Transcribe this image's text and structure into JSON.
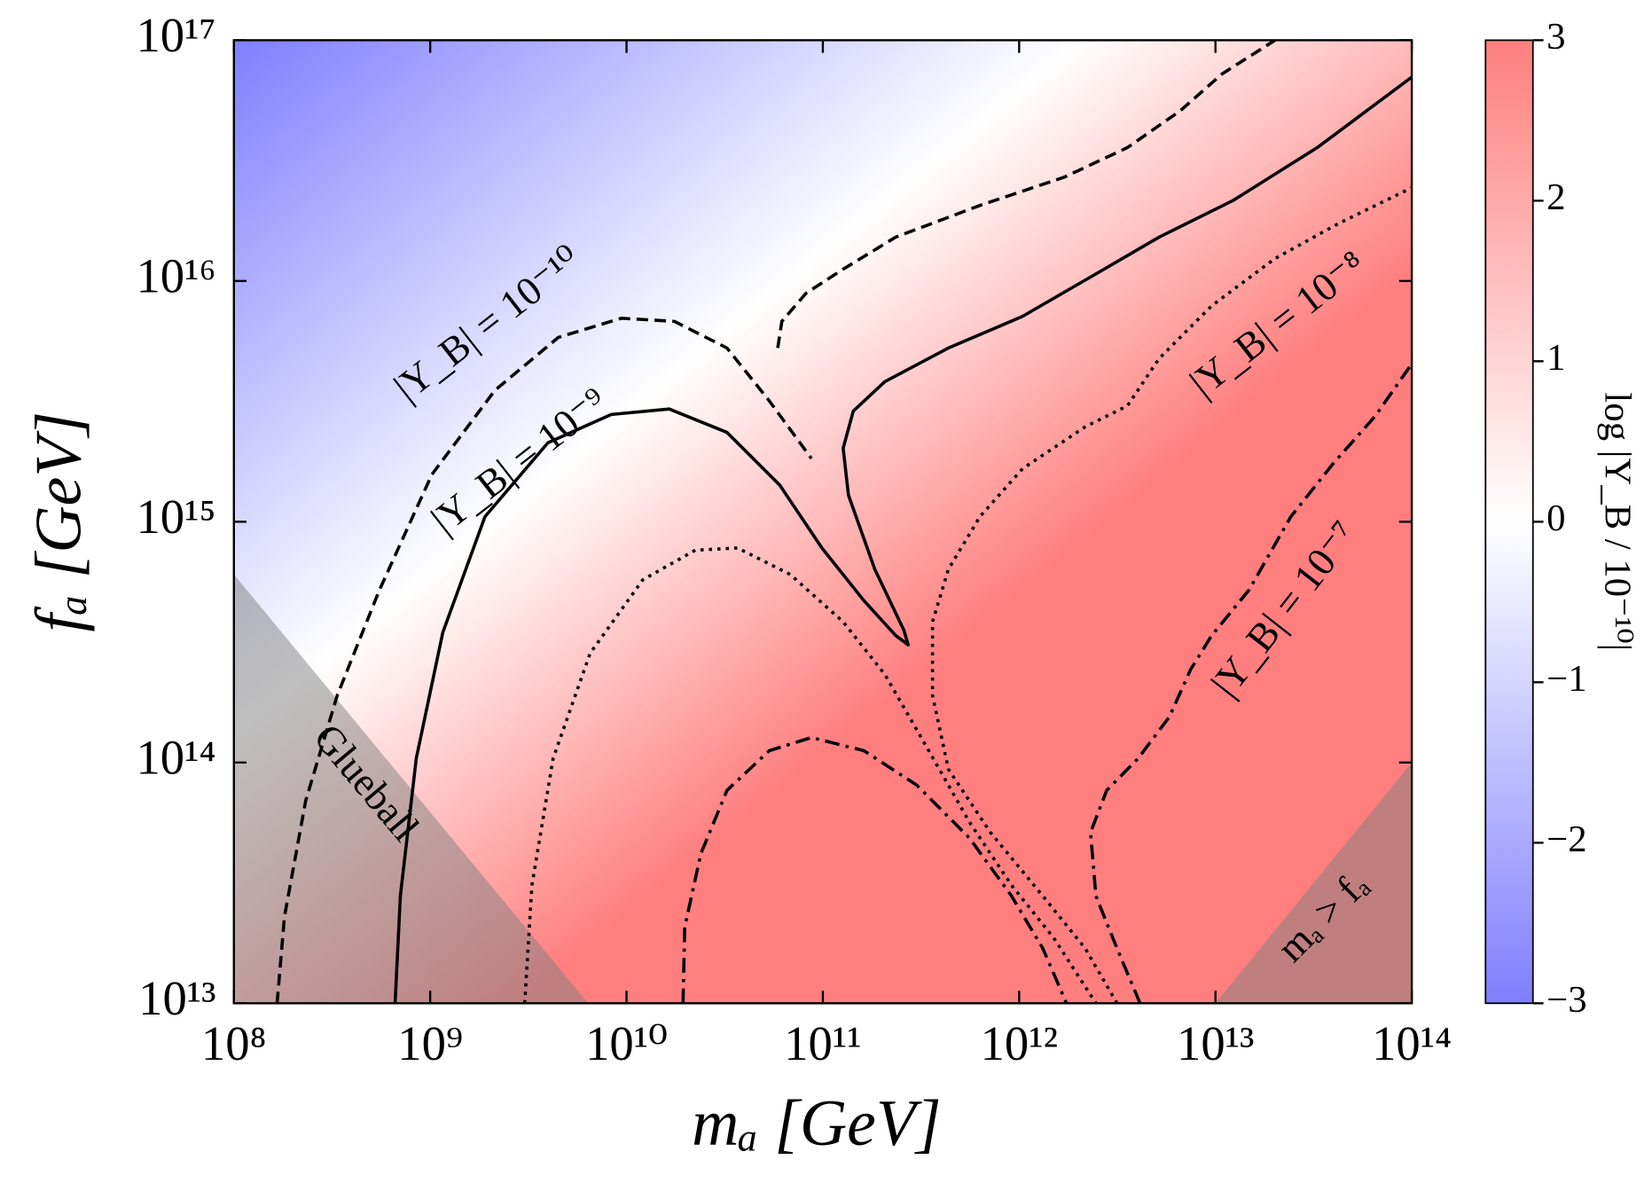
{
  "chart_data": {
    "type": "contour",
    "x_label": "mₐ [GeV]",
    "y_label": "fₐ [GeV]",
    "log_x": true,
    "log_y": true,
    "xlim": [
      100000000.0,
      100000000000000.0
    ],
    "ylim": [
      10000000000000.0,
      1e+17
    ],
    "xticks": [
      {
        "value": 100000000.0,
        "label": "10⁸"
      },
      {
        "value": 1000000000.0,
        "label": "10⁹"
      },
      {
        "value": 10000000000.0,
        "label": "10¹⁰"
      },
      {
        "value": 100000000000.0,
        "label": "10¹¹"
      },
      {
        "value": 1000000000000.0,
        "label": "10¹²"
      },
      {
        "value": 10000000000000.0,
        "label": "10¹³"
      },
      {
        "value": 100000000000000.0,
        "label": "10¹⁴"
      }
    ],
    "yticks": [
      {
        "value": 10000000000000.0,
        "label": "10¹³"
      },
      {
        "value": 100000000000000.0,
        "label": "10¹⁴"
      },
      {
        "value": 1000000000000000.0,
        "label": "10¹⁵"
      },
      {
        "value": 1e+16,
        "label": "10¹⁶"
      },
      {
        "value": 1e+17,
        "label": "10¹⁷"
      }
    ],
    "colorbar": {
      "label": "log |Y_B / 10⁻¹⁰|",
      "colormap": [
        "#7f7fff",
        "#ffffff",
        "#ff7f7f"
      ],
      "clim": [
        -3,
        3
      ],
      "ticks": [
        {
          "value": -3,
          "label": "−3"
        },
        {
          "value": -2,
          "label": "−2"
        },
        {
          "value": -1,
          "label": "−1"
        },
        0,
        1,
        2,
        3
      ]
    },
    "contours": [
      {
        "name": "|Y_B| = 10⁻¹⁰",
        "linestyle": "dashed",
        "color": "#000000",
        "pieces": [
          {
            "x": [
              166000000.0,
              181000000.0,
              232000000.0,
              336000000.0,
              551000000.0,
              1020000000.0,
              2140000000.0,
              4500000000.0,
              9400000000.0,
              17500000000.0,
              32500000000.0,
              53300000000.0,
              87500000000.0
            ],
            "y": [
              10000000000000.0,
              22900000000000.0,
              69200000000000.0,
              190000000000000.0,
              520000000000000.0,
              1570000000000000.0,
              3520000000000000.0,
              5830000000000000.0,
              7000000000000000.0,
              6800000000000000.0,
              5270000000000000.0,
              3180000000000000.0,
              1830000000000000.0
            ]
          },
          {
            "x": [
              58900000000.0,
              61800000000.0,
              82200000000.0,
              127000000000.0,
              235000000000.0,
              631000000000.0,
              1700000000000.0,
              3560000000000.0,
              6610000000000.0,
              10800000000000.0,
              20100000000000.0
            ],
            "y": [
              5270000000000000.0,
              6800000000000000.0,
              8900000000000000.0,
              1.12e+16,
              1.52e+16,
              2.06e+16,
              2.7e+16,
              3.58e+16,
              5.09e+16,
              7.24e+16,
              1e+17
            ]
          }
        ]
      },
      {
        "name": "|Y_B| = 10⁻⁹",
        "linestyle": "solid",
        "color": "#000000",
        "pieces": [
          {
            "x": [
              662000000.0,
              705000000.0,
              849000000.0,
              1160000000.0,
              1900000000.0,
              3980000000.0,
              8360000000.0,
              16500000000.0,
              32500000000.0,
              60300000000.0,
              98900000000.0,
              162000000000.0,
              235000000000.0,
              272000000000.0,
              259000000000.0,
              184000000000.0,
              135000000000.0,
              127000000000.0,
              143000000000.0,
              207000000000.0,
              436000000000.0,
              1040000000000.0,
              2460000000000.0,
              5160000000000.0,
              12300000000000.0,
              33000000000000.0,
              100000000000000.0
            ],
            "y": [
              10000000000000.0,
              27900000000000.0,
              104000000000000.0,
              347000000000000.0,
              1050000000000000.0,
              2130000000000000.0,
              2790000000000000.0,
              2940000000000000.0,
              2350000000000000.0,
              1420000000000000.0,
              778000000000000.0,
              470000000000000.0,
              337000000000000.0,
              308000000000000.0,
              354000000000000.0,
              635000000000000.0,
              1290000000000000.0,
              2020000000000000.0,
              2880000000000000.0,
              3820000000000000.0,
              5270000000000000.0,
              7130000000000000.0,
              1.07e+16,
              1.52e+16,
              2.16e+16,
              3.58e+16,
              7.03e+16
            ]
          }
        ]
      },
      {
        "name": "|Y_B| = 10⁻⁸",
        "linestyle": "dotted",
        "color": "#000000",
        "pieces": [
          {
            "x": [
              3030000000.0,
              3300000000.0,
              4230000000.0,
              6520000000.0,
              12100000000.0,
              22400000000.0,
              36800000000.0,
              68200000000.0,
              127000000000.0,
              207000000000.0,
              340000000000.0,
              558000000000.0,
              915000000000.0,
              1500000000000.0,
              2460000000000.0
            ],
            "y": [
              10000000000000.0,
              30900000000000.0,
              104000000000000.0,
              284000000000000.0,
              574000000000000.0,
              762000000000000.0,
              778000000000000.0,
              604000000000000.0,
              384000000000000.0,
              232000000000000.0,
              115000000000000.0,
              56600000000000.0,
              30900000000000.0,
              18700000000000.0,
              10000000000000.0
            ]
          },
          {
            "x": [
              3150000000000.0,
              2170000000000.0,
              1320000000000.0,
              714000000000.0,
              436000000000.0,
              362000000000.0,
              362000000000.0,
              436000000000.0,
              631000000000.0,
              1040000000000.0,
              2170000000000.0,
              3560000000000.0,
              5160000000000.0,
              9570000000000.0,
              20100000000000.0,
              42200000000000.0,
              100000000000000.0
            ],
            "y": [
              10000000000000.0,
              16900000000000.0,
              27900000000000.0,
              51200000000000.0,
              93800000000000.0,
              190000000000000.0,
              384000000000000.0,
              635000000000000.0,
              1050000000000000.0,
              1660000000000000.0,
              2480000000000000.0,
              3030000000000000.0,
              4760000000000000.0,
              7890000000000000.0,
              1.24e+16,
              1.73e+16,
              2.44e+16
            ]
          }
        ]
      },
      {
        "name": "|Y_B| = 10⁻⁷",
        "linestyle": "dashdot",
        "color": "#000000",
        "pieces": [
          {
            "x": [
              19400000000.0,
              19800000000.0,
              23900000000.0,
              32500000000.0,
              53300000000.0,
              87500000000.0,
              162000000000.0,
              301000000000.0,
              558000000000.0,
              915000000000.0,
              1320000000000.0,
              1740000000000.0
            ],
            "y": [
              10000000000000.0,
              20700000000000.0,
              41800000000000.0,
              76600000000000.0,
              112000000000000.0,
              127000000000000.0,
              112000000000000.0,
              80500000000000.0,
              48600000000000.0,
              27900000000000.0,
              16900000000000.0,
              10000000000000.0
            ]
          },
          {
            "x": [
              4130000000000.0,
              3150000000000.0,
              2460000000000.0,
              2310000000000.0,
              2790000000000.0,
              4040000000000.0,
              5830000000000.0,
              7480000000000.0,
              9570000000000.0,
              14800000000000.0,
              24200000000000.0,
              39700000000000.0,
              65000000000000.0,
              100000000000000.0
            ],
            "y": [
              10000000000000.0,
              16900000000000.0,
              27900000000000.0,
              51200000000000.0,
              76600000000000.0,
              104000000000000.0,
              155000000000000.0,
              244000000000000.0,
              337000000000000.0,
              520000000000000.0,
              1050000000000000.0,
              1740000000000000.0,
              2740000000000000.0,
              4530000000000000.0
            ]
          }
        ]
      }
    ],
    "regions": [
      {
        "name": "Glueball",
        "color": "#808080",
        "alpha": 0.5,
        "x": [
          100000000.0,
          6370000000.0,
          100000000.0
        ],
        "y": [
          604000000000000.0,
          10000000000000.0,
          10000000000000.0
        ]
      },
      {
        "name": "mₐ > fₐ",
        "color": "#808080",
        "alpha": 0.5,
        "x": [
          10000000000000.0,
          100000000000000.0,
          100000000000000.0
        ],
        "y": [
          10000000000000.0,
          100000000000000.0,
          10000000000000.0
        ]
      }
    ]
  }
}
